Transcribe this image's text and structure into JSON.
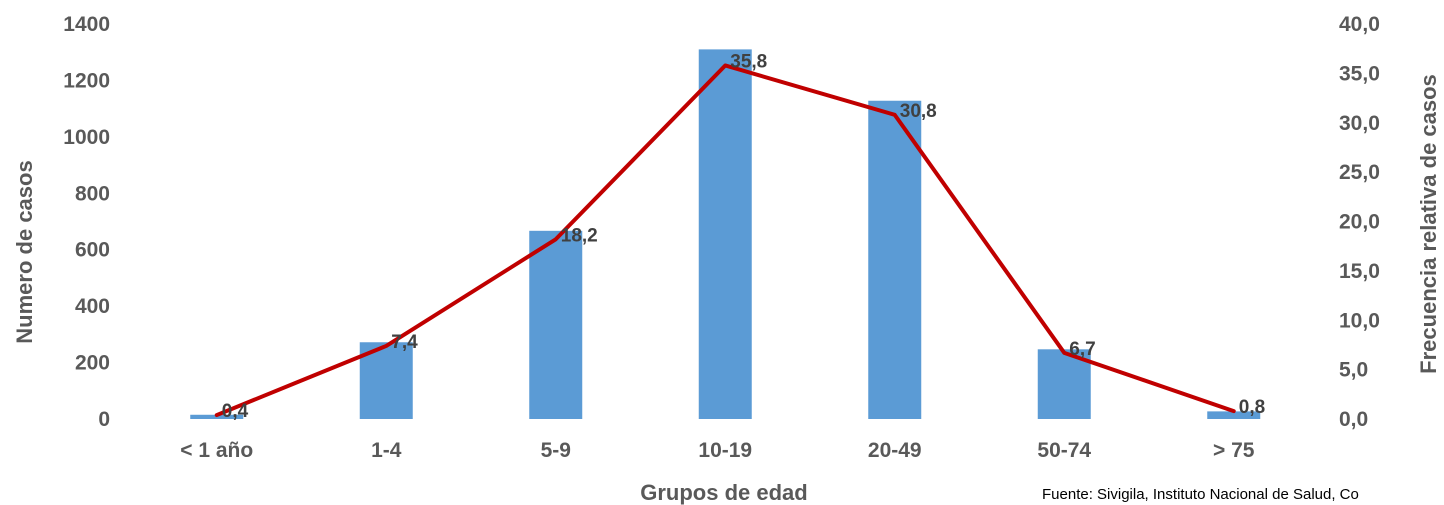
{
  "chart_data": {
    "type": "bar",
    "categories": [
      "< 1 año",
      "1-4",
      "5-9",
      "10-19",
      "20-49",
      "50-74",
      "> 75"
    ],
    "series": [
      {
        "type": "bar",
        "axis": "left",
        "values": [
          15,
          272,
          667,
          1310,
          1128,
          247,
          27
        ],
        "color": "#5B9BD5"
      },
      {
        "type": "line",
        "axis": "right",
        "values": [
          0.4,
          7.4,
          18.2,
          35.8,
          30.8,
          6.7,
          0.8
        ],
        "labels": [
          "0,4",
          "7,4",
          "18,2",
          "35,8",
          "30,8",
          "6,7",
          "0,8"
        ],
        "color": "#C00000"
      }
    ],
    "xlabel": "Grupos de edad",
    "ylabel": "Numero de casos",
    "y2label": "Frecuencia relativa de casos",
    "ylim": [
      0,
      1400
    ],
    "y2lim": [
      0,
      40
    ],
    "yticks": [
      "0",
      "200",
      "400",
      "600",
      "800",
      "1000",
      "1200",
      "1400"
    ],
    "y2ticks": [
      "0,0",
      "5,0",
      "10,0",
      "15,0",
      "20,0",
      "25,0",
      "30,0",
      "35,0",
      "40,0"
    ],
    "grid": false,
    "legend": "none"
  },
  "source_note": "Fuente: Sivigila, Instituto Nacional de Salud, Co"
}
